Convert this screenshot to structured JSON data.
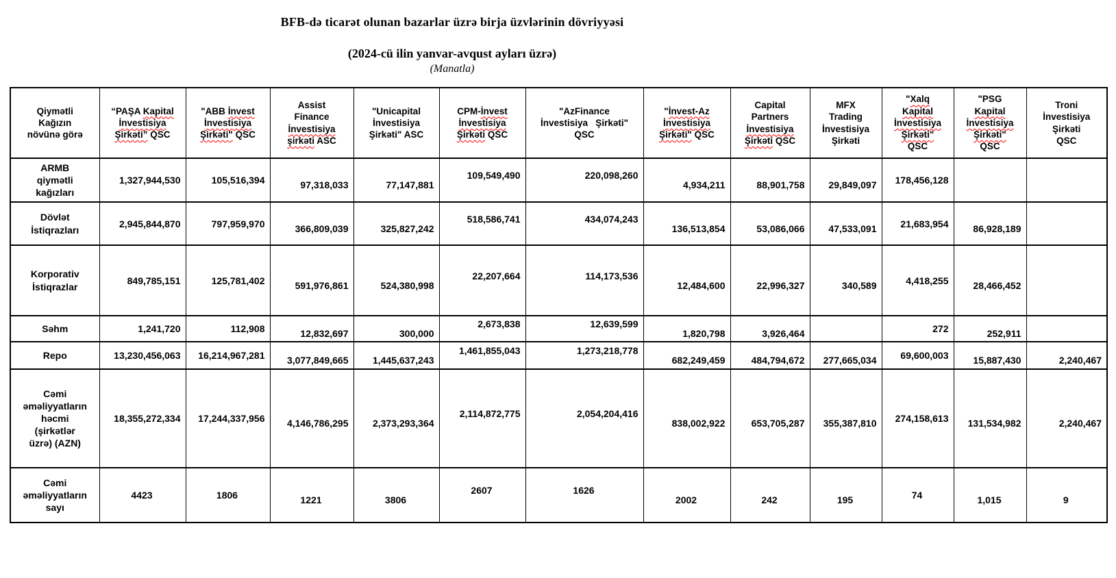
{
  "title": "BFB-də ticarət olunan bazarlar üzrə birja üzvlərinin dövriyyəsi",
  "subtitle": "(2024-cü ilin yanvar-avqust ayları üzrə)",
  "unit_note": "(Manatla)",
  "colors": {
    "background": "#ffffff",
    "text": "#000000",
    "table_border": "#000000",
    "spellcheck_underline": "#ff0000"
  },
  "table": {
    "corner": {
      "lines": [
        [
          {
            "t": "Qiymətli",
            "w": false
          }
        ],
        [
          {
            "t": "Kağızın",
            "w": false
          }
        ],
        [
          {
            "t": "növünə görə",
            "w": false
          }
        ]
      ]
    },
    "columns": [
      {
        "id": "pasa-kapital",
        "lines": [
          [
            {
              "t": "“PAŞA ",
              "w": false
            },
            {
              "t": "Kapital",
              "w": true
            }
          ],
          [
            {
              "t": "İnvestisiya",
              "w": true
            }
          ],
          [
            {
              "t": "Şirkəti”",
              "w": true
            },
            {
              "t": " QSC",
              "w": false
            }
          ]
        ]
      },
      {
        "id": "abb-invest",
        "lines": [
          [
            {
              "t": "\"ABB ",
              "w": false
            },
            {
              "t": "İnvest",
              "w": true
            }
          ],
          [
            {
              "t": "İnvestisiya",
              "w": true
            }
          ],
          [
            {
              "t": "Şirkəti\"",
              "w": true
            },
            {
              "t": " QSC",
              "w": false
            }
          ]
        ]
      },
      {
        "id": "assist-finance",
        "lines": [
          [
            {
              "t": "Assist",
              "w": false
            }
          ],
          [
            {
              "t": "Finance",
              "w": false
            }
          ],
          [
            {
              "t": "İnvestisiya",
              "w": true
            }
          ],
          [
            {
              "t": "şirkəti",
              "w": true
            },
            {
              "t": " ASC",
              "w": false
            }
          ]
        ]
      },
      {
        "id": "unicapital",
        "lines": [
          [
            {
              "t": "\"Unicapital",
              "w": false
            }
          ],
          [
            {
              "t": "İnvestisiya",
              "w": false
            }
          ],
          [
            {
              "t": "Şirkəti\" ASC",
              "w": false
            }
          ]
        ]
      },
      {
        "id": "cpm-invest",
        "lines": [
          [
            {
              "t": "CPM-",
              "w": false
            },
            {
              "t": "İnvest",
              "w": true
            }
          ],
          [
            {
              "t": "İnvestisiya",
              "w": true
            }
          ],
          [
            {
              "t": "Şirkəti",
              "w": true
            },
            {
              "t": " QSC",
              "w": false
            }
          ]
        ]
      },
      {
        "id": "azfinance",
        "lines": [
          [
            {
              "t": "\"AzFinance",
              "w": false
            }
          ],
          [
            {
              "t": "İnvestisiya   Şirkəti\"",
              "w": false
            }
          ],
          [
            {
              "t": "QSC",
              "w": false
            }
          ]
        ]
      },
      {
        "id": "invest-az",
        "lines": [
          [
            {
              "t": "\"",
              "w": false
            },
            {
              "t": "İnvest-Az",
              "w": true
            }
          ],
          [
            {
              "t": "İnvestisiya",
              "w": true
            }
          ],
          [
            {
              "t": "Şirkəti\"",
              "w": true
            },
            {
              "t": " QSC",
              "w": false
            }
          ]
        ]
      },
      {
        "id": "capital-partners",
        "lines": [
          [
            {
              "t": "Capital",
              "w": false
            }
          ],
          [
            {
              "t": "Partners",
              "w": false
            }
          ],
          [
            {
              "t": "İnvestisiya",
              "w": true
            }
          ],
          [
            {
              "t": "Şirkəti",
              "w": true
            },
            {
              "t": " QSC",
              "w": false
            }
          ]
        ]
      },
      {
        "id": "mfx-trading",
        "lines": [
          [
            {
              "t": "MFX",
              "w": false
            }
          ],
          [
            {
              "t": "Trading",
              "w": false
            }
          ],
          [
            {
              "t": "İnvestisiya",
              "w": false
            }
          ],
          [
            {
              "t": "Şirkəti",
              "w": false
            }
          ]
        ]
      },
      {
        "id": "xalq-kapital",
        "lines": [
          [
            {
              "t": "\"",
              "w": false
            },
            {
              "t": "Xalq",
              "w": true
            }
          ],
          [
            {
              "t": "Kapital",
              "w": true
            }
          ],
          [
            {
              "t": "İnvestisiya",
              "w": true
            }
          ],
          [
            {
              "t": "Şirkəti\"",
              "w": true
            }
          ],
          [
            {
              "t": "QSC",
              "w": false
            }
          ]
        ]
      },
      {
        "id": "psg-kapital",
        "lines": [
          [
            {
              "t": "\"PSG",
              "w": false
            }
          ],
          [
            {
              "t": "Kapital",
              "w": true
            }
          ],
          [
            {
              "t": "İnvestisiya",
              "w": true
            }
          ],
          [
            {
              "t": "Şirkəti\"",
              "w": true
            }
          ],
          [
            {
              "t": "QSC",
              "w": false
            }
          ]
        ]
      },
      {
        "id": "troni",
        "lines": [
          [
            {
              "t": "Troni",
              "w": false
            }
          ],
          [
            {
              "t": "İnvestisiya",
              "w": false
            }
          ],
          [
            {
              "t": "Şirkəti",
              "w": false
            }
          ],
          [
            {
              "t": "QSC",
              "w": false
            }
          ]
        ]
      }
    ],
    "rows": [
      {
        "id": "armb-qiymetli-kagizlari",
        "label_lines": [
          "ARMB",
          "qiymətli",
          "kağızları"
        ],
        "values": [
          "1,327,944,530",
          "105,516,394",
          "97,318,033",
          "77,147,881",
          "109,549,490",
          "220,098,260",
          "4,934,211",
          "88,901,758",
          "29,849,097",
          "178,456,128",
          "",
          ""
        ]
      },
      {
        "id": "dovlet-istiqrazlari",
        "label_lines": [
          "Dövlət",
          "İstiqrazları"
        ],
        "values": [
          "2,945,844,870",
          "797,959,970",
          "366,809,039",
          "325,827,242",
          "518,586,741",
          "434,074,243",
          "136,513,854",
          "53,086,066",
          "47,533,091",
          "21,683,954",
          "86,928,189",
          ""
        ]
      },
      {
        "id": "korporativ-istiqrazlar",
        "label_lines": [
          "Korporativ",
          "İstiqrazlar"
        ],
        "values": [
          "849,785,151",
          "125,781,402",
          "591,976,861",
          "524,380,998",
          "22,207,664",
          "114,173,536",
          "12,484,600",
          "22,996,327",
          "340,589",
          "4,418,255",
          "28,466,452",
          ""
        ]
      },
      {
        "id": "sehm",
        "label_lines": [
          "Səhm"
        ],
        "values": [
          "1,241,720",
          "112,908",
          "12,832,697",
          "300,000",
          "2,673,838",
          "12,639,599",
          "1,820,798",
          "3,926,464",
          "",
          "272",
          "252,911",
          ""
        ]
      },
      {
        "id": "repo",
        "label_lines": [
          "Repo"
        ],
        "values": [
          "13,230,456,063",
          "16,214,967,281",
          "3,077,849,665",
          "1,445,637,243",
          "1,461,855,043",
          "1,273,218,778",
          "682,249,459",
          "484,794,672",
          "277,665,034",
          "69,600,003",
          "15,887,430",
          "2,240,467"
        ]
      },
      {
        "id": "cemi-emeliyyatlarin-hecmi",
        "label_lines": [
          "Cəmi",
          "əməliyyatların",
          "həcmi",
          "(şirkətlər",
          "üzrə) (AZN)"
        ],
        "values": [
          "18,355,272,334",
          "17,244,337,956",
          "4,146,786,295",
          "2,373,293,364",
          "2,114,872,775",
          "2,054,204,416",
          "838,002,922",
          "653,705,287",
          "355,387,810",
          "274,158,613",
          "131,534,982",
          "2,240,467"
        ]
      },
      {
        "id": "cemi-emeliyyatlarin-sayi",
        "label_lines": [
          "Cəmi",
          "əməliyyatların",
          "sayı"
        ],
        "values": [
          "4423",
          "1806",
          "1221",
          "3806",
          "2607",
          "1626",
          "2002",
          "242",
          "195",
          "74",
          "1,015",
          "9"
        ]
      }
    ]
  }
}
